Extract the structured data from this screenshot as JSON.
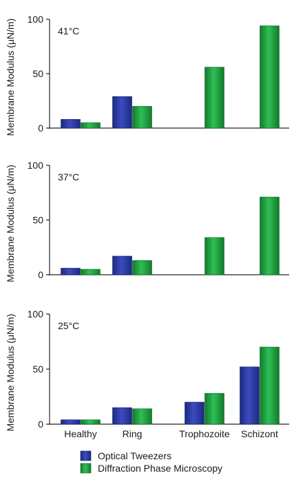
{
  "chart_data": [
    {
      "type": "bar",
      "annotation": "41°C",
      "ylabel": "Membrane Modulus (μN/m)",
      "ylim": [
        0,
        100
      ],
      "yticks": [
        0,
        50,
        100
      ],
      "categories": [
        "Healthy",
        "Ring",
        "Trophozoite",
        "Schizont"
      ],
      "series": [
        {
          "name": "Optical Tweezers",
          "values": [
            8,
            29,
            null,
            null
          ]
        },
        {
          "name": "Diffraction Phase Microscopy",
          "values": [
            5,
            20,
            56,
            94
          ]
        }
      ]
    },
    {
      "type": "bar",
      "annotation": "37°C",
      "ylabel": "Membrane Modulus (μN/m)",
      "ylim": [
        0,
        100
      ],
      "yticks": [
        0,
        50,
        100
      ],
      "categories": [
        "Healthy",
        "Ring",
        "Trophozoite",
        "Schizont"
      ],
      "series": [
        {
          "name": "Optical Tweezers",
          "values": [
            6,
            17,
            null,
            null
          ]
        },
        {
          "name": "Diffraction Phase Microscopy",
          "values": [
            5,
            13,
            34,
            71
          ]
        }
      ]
    },
    {
      "type": "bar",
      "annotation": "25°C",
      "ylabel": "Membrane Modulus (μN/m)",
      "ylim": [
        0,
        100
      ],
      "yticks": [
        0,
        50,
        100
      ],
      "categories": [
        "Healthy",
        "Ring",
        "Trophozoite",
        "Schizont"
      ],
      "series": [
        {
          "name": "Optical Tweezers",
          "values": [
            4,
            15,
            20,
            52
          ]
        },
        {
          "name": "Diffraction Phase Microscopy",
          "values": [
            4,
            14,
            28,
            70
          ]
        }
      ]
    }
  ],
  "legend": {
    "placement": "bottom",
    "items": [
      {
        "label": "Optical Tweezers",
        "color": "#2b3a9c"
      },
      {
        "label": "Diffraction Phase Microscopy",
        "color": "#1f9a3c"
      }
    ]
  },
  "colors": {
    "optical_tweezers": "#2b3a9c",
    "diffraction_phase": "#1f9a3c"
  }
}
